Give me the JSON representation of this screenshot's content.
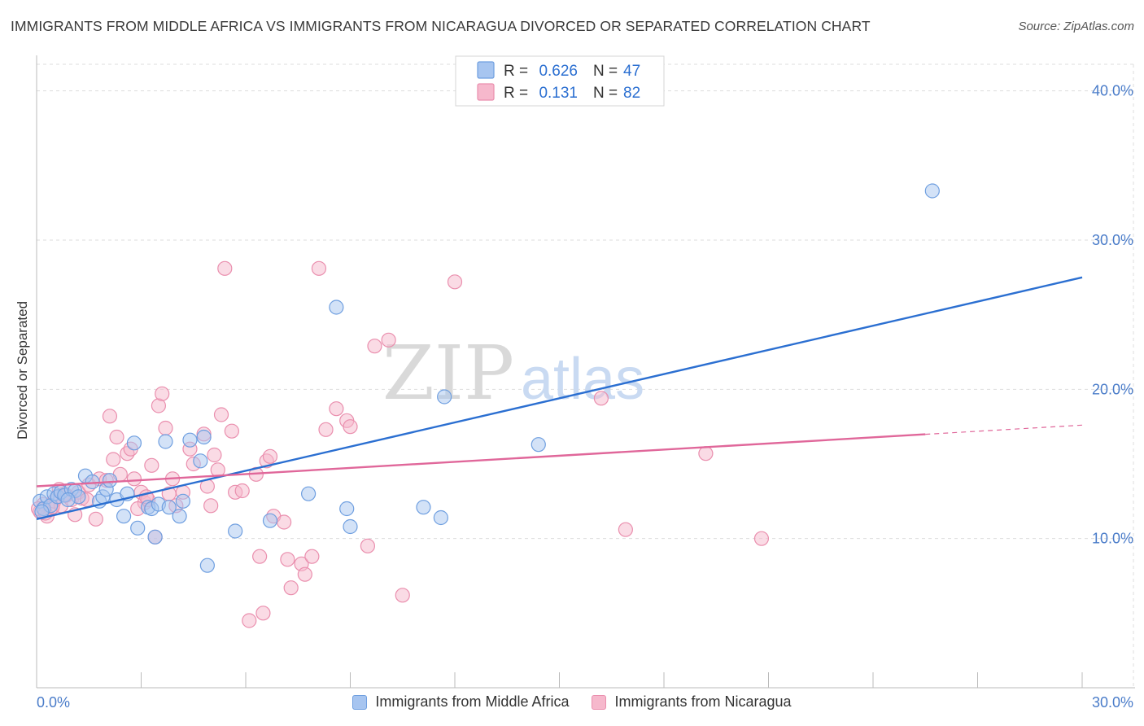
{
  "title": "IMMIGRANTS FROM MIDDLE AFRICA VS IMMIGRANTS FROM NICARAGUA DIVORCED OR SEPARATED CORRELATION CHART",
  "source": "Source: ZipAtlas.com",
  "watermark": {
    "zip": "ZIP",
    "atlas": "atlas"
  },
  "colors": {
    "blue_fill": "#a7c5f0",
    "blue_stroke": "#6f9fe0",
    "blue_line": "#2b6fd1",
    "pink_fill": "#f6b8cc",
    "pink_stroke": "#ea8fae",
    "pink_line": "#e0679a",
    "axis_text": "#4a7cc9",
    "grid": "#dddddd"
  },
  "legend_top": [
    {
      "r_label": "R =",
      "r_value": "0.626",
      "n_label": "N =",
      "n_value": "47"
    },
    {
      "r_label": "R =",
      "r_value": "0.131",
      "n_label": "N =",
      "n_value": "82"
    }
  ],
  "chart_data": {
    "type": "scatter",
    "title": "IMMIGRANTS FROM MIDDLE AFRICA VS IMMIGRANTS FROM NICARAGUA DIVORCED OR SEPARATED CORRELATION CHART",
    "xlabel": "",
    "ylabel": "Divorced or Separated",
    "xlim": [
      0,
      30
    ],
    "ylim": [
      0,
      42
    ],
    "x_tick_labels": [
      "0.0%",
      "30.0%"
    ],
    "y_ticks": [
      10,
      20,
      30,
      40
    ],
    "y_tick_labels": [
      "10.0%",
      "20.0%",
      "30.0%",
      "40.0%"
    ],
    "grid": true,
    "legend_position": "bottom",
    "series": [
      {
        "name": "Immigrants from Middle Africa",
        "trend": {
          "x0": 0,
          "y0": 11.3,
          "x1": 30,
          "y1": 27.5,
          "dashed_from": null
        },
        "points": [
          [
            0.1,
            12.5
          ],
          [
            0.2,
            12.0
          ],
          [
            0.3,
            12.8
          ],
          [
            0.4,
            12.2
          ],
          [
            0.5,
            13.0
          ],
          [
            0.6,
            12.8
          ],
          [
            0.7,
            13.1
          ],
          [
            0.8,
            12.9
          ],
          [
            1.0,
            13.3
          ],
          [
            1.1,
            13.2
          ],
          [
            1.2,
            12.8
          ],
          [
            1.4,
            14.2
          ],
          [
            1.6,
            13.8
          ],
          [
            1.8,
            12.5
          ],
          [
            1.9,
            12.8
          ],
          [
            2.0,
            13.3
          ],
          [
            2.1,
            13.9
          ],
          [
            2.3,
            12.6
          ],
          [
            2.5,
            11.5
          ],
          [
            2.6,
            13.0
          ],
          [
            2.8,
            16.4
          ],
          [
            2.9,
            10.7
          ],
          [
            3.2,
            12.1
          ],
          [
            3.3,
            12.0
          ],
          [
            3.4,
            10.1
          ],
          [
            3.5,
            12.3
          ],
          [
            3.7,
            16.5
          ],
          [
            3.8,
            12.1
          ],
          [
            4.1,
            11.5
          ],
          [
            4.2,
            12.5
          ],
          [
            4.4,
            16.6
          ],
          [
            4.7,
            15.2
          ],
          [
            4.8,
            16.8
          ],
          [
            4.9,
            8.2
          ],
          [
            5.7,
            10.5
          ],
          [
            6.7,
            11.2
          ],
          [
            7.8,
            13.0
          ],
          [
            8.6,
            25.5
          ],
          [
            8.9,
            12.0
          ],
          [
            9.0,
            10.8
          ],
          [
            11.1,
            12.1
          ],
          [
            11.6,
            11.4
          ],
          [
            11.7,
            19.5
          ],
          [
            14.4,
            16.3
          ],
          [
            25.7,
            33.3
          ],
          [
            0.15,
            11.8
          ],
          [
            0.9,
            12.6
          ]
        ]
      },
      {
        "name": "Immigrants from Nicaragua",
        "trend": {
          "x0": 0,
          "y0": 13.5,
          "x1": 30,
          "y1": 17.6,
          "dashed_from": 25.5
        },
        "points": [
          [
            0.1,
            11.8
          ],
          [
            0.2,
            12.3
          ],
          [
            0.3,
            11.5
          ],
          [
            0.4,
            12.0
          ],
          [
            0.5,
            12.5
          ],
          [
            0.6,
            12.8
          ],
          [
            0.7,
            12.2
          ],
          [
            0.8,
            13.0
          ],
          [
            1.0,
            12.6
          ],
          [
            1.1,
            11.6
          ],
          [
            1.2,
            13.1
          ],
          [
            1.3,
            12.7
          ],
          [
            1.5,
            13.6
          ],
          [
            1.7,
            11.3
          ],
          [
            1.8,
            14.0
          ],
          [
            2.0,
            13.9
          ],
          [
            2.1,
            18.2
          ],
          [
            2.3,
            16.8
          ],
          [
            2.4,
            14.3
          ],
          [
            2.6,
            15.7
          ],
          [
            2.7,
            16.0
          ],
          [
            2.8,
            14.0
          ],
          [
            3.0,
            13.1
          ],
          [
            3.1,
            12.4
          ],
          [
            3.2,
            12.6
          ],
          [
            3.3,
            14.9
          ],
          [
            3.4,
            10.1
          ],
          [
            3.5,
            18.9
          ],
          [
            3.6,
            19.7
          ],
          [
            3.7,
            17.4
          ],
          [
            3.8,
            13.0
          ],
          [
            3.9,
            14.0
          ],
          [
            4.0,
            12.2
          ],
          [
            4.2,
            13.1
          ],
          [
            4.4,
            16.0
          ],
          [
            4.5,
            15.0
          ],
          [
            4.8,
            17.0
          ],
          [
            4.9,
            13.5
          ],
          [
            5.1,
            15.6
          ],
          [
            5.2,
            14.6
          ],
          [
            5.3,
            18.3
          ],
          [
            5.4,
            28.1
          ],
          [
            5.6,
            17.2
          ],
          [
            5.7,
            13.1
          ],
          [
            5.9,
            13.2
          ],
          [
            6.1,
            4.5
          ],
          [
            6.3,
            14.3
          ],
          [
            6.4,
            8.8
          ],
          [
            6.5,
            5.0
          ],
          [
            6.6,
            15.2
          ],
          [
            6.7,
            15.5
          ],
          [
            6.8,
            11.5
          ],
          [
            7.1,
            11.1
          ],
          [
            7.2,
            8.6
          ],
          [
            7.3,
            6.7
          ],
          [
            7.6,
            8.3
          ],
          [
            7.7,
            7.6
          ],
          [
            7.9,
            8.8
          ],
          [
            8.1,
            28.1
          ],
          [
            8.3,
            17.3
          ],
          [
            8.6,
            18.7
          ],
          [
            8.9,
            17.9
          ],
          [
            9.0,
            17.5
          ],
          [
            9.5,
            9.5
          ],
          [
            9.7,
            22.9
          ],
          [
            10.1,
            23.3
          ],
          [
            10.5,
            6.2
          ],
          [
            12.0,
            27.2
          ],
          [
            16.2,
            19.4
          ],
          [
            16.9,
            10.6
          ],
          [
            19.2,
            15.7
          ],
          [
            20.8,
            10.0
          ],
          [
            0.05,
            12.0
          ],
          [
            0.25,
            11.7
          ],
          [
            0.45,
            12.1
          ],
          [
            0.65,
            13.3
          ],
          [
            0.85,
            12.9
          ],
          [
            1.45,
            12.6
          ],
          [
            2.2,
            15.3
          ],
          [
            2.9,
            12.0
          ],
          [
            3.15,
            12.8
          ],
          [
            5.0,
            12.2
          ]
        ]
      }
    ]
  },
  "legend_bottom": [
    {
      "label": "Immigrants from Middle Africa"
    },
    {
      "label": "Immigrants from Nicaragua"
    }
  ]
}
